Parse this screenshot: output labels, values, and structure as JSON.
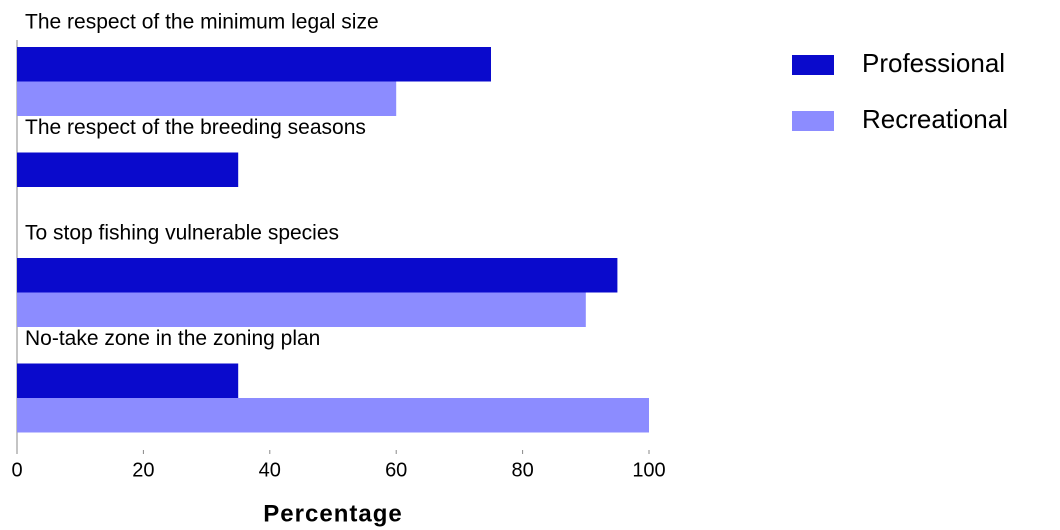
{
  "chart_data": {
    "type": "hbar",
    "categories": [
      "The respect of the minimum legal size",
      "The respect of the breeding seasons",
      "To stop fishing vulnerable species",
      "No-take zone in the zoning plan"
    ],
    "series": [
      {
        "name": "Professional",
        "color": "#0a0acc",
        "values": [
          75,
          35,
          95,
          35
        ]
      },
      {
        "name": "Recreational",
        "color": "#8c8cff",
        "values": [
          60,
          0,
          90,
          100
        ]
      }
    ],
    "xlim": [
      0,
      100
    ],
    "xticks": [
      0,
      20,
      40,
      60,
      80,
      100
    ],
    "xlabel": "Percentage",
    "legend": "upper right"
  }
}
